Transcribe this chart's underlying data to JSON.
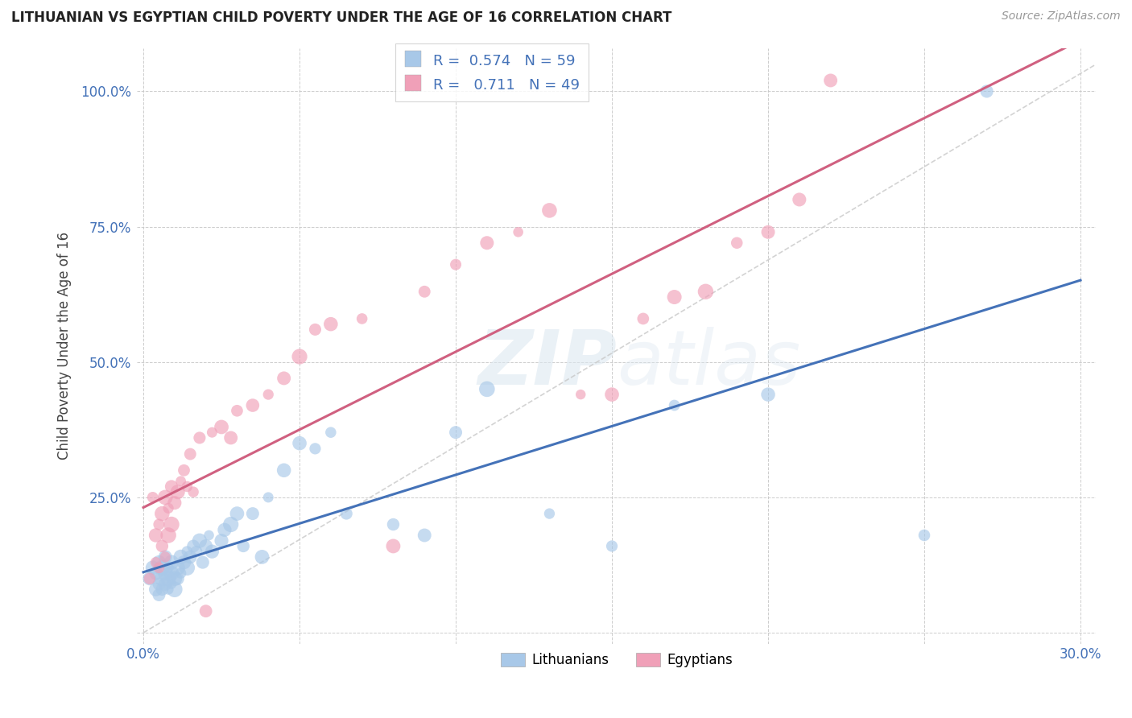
{
  "title": "LITHUANIAN VS EGYPTIAN CHILD POVERTY UNDER THE AGE OF 16 CORRELATION CHART",
  "source": "Source: ZipAtlas.com",
  "ylabel": "Child Poverty Under the Age of 16",
  "xlabel": "",
  "xlim": [
    -0.002,
    0.305
  ],
  "ylim": [
    -0.02,
    1.08
  ],
  "xticks": [
    0.0,
    0.05,
    0.1,
    0.15,
    0.2,
    0.25,
    0.3
  ],
  "xtick_labels": [
    "0.0%",
    "",
    "",
    "",
    "",
    "",
    "30.0%"
  ],
  "yticks": [
    0.0,
    0.25,
    0.5,
    0.75,
    1.0
  ],
  "ytick_labels": [
    "",
    "25.0%",
    "50.0%",
    "75.0%",
    "100.0%"
  ],
  "grid_color": "#c8c8c8",
  "background_color": "#ffffff",
  "watermark": "ZIPatlas",
  "legend_R1": "0.574",
  "legend_N1": "59",
  "legend_R2": "0.711",
  "legend_N2": "49",
  "blue_color": "#a8c8e8",
  "pink_color": "#f0a0b8",
  "blue_line_color": "#4472b8",
  "pink_line_color": "#d06080",
  "ref_line_color": "#c8c8c8",
  "label_color_blue": "#4472b8",
  "R_color": "#1a1a2e",
  "N_color": "#4472b8",
  "lith_x": [
    0.002,
    0.003,
    0.004,
    0.004,
    0.005,
    0.005,
    0.005,
    0.006,
    0.006,
    0.006,
    0.007,
    0.007,
    0.007,
    0.008,
    0.008,
    0.008,
    0.009,
    0.009,
    0.009,
    0.01,
    0.01,
    0.011,
    0.011,
    0.012,
    0.012,
    0.013,
    0.014,
    0.014,
    0.015,
    0.016,
    0.017,
    0.018,
    0.019,
    0.02,
    0.021,
    0.022,
    0.025,
    0.026,
    0.028,
    0.03,
    0.032,
    0.035,
    0.038,
    0.04,
    0.045,
    0.05,
    0.055,
    0.06,
    0.065,
    0.08,
    0.09,
    0.1,
    0.11,
    0.13,
    0.15,
    0.17,
    0.2,
    0.25,
    0.27
  ],
  "lith_y": [
    0.1,
    0.12,
    0.08,
    0.11,
    0.09,
    0.13,
    0.07,
    0.1,
    0.12,
    0.08,
    0.11,
    0.09,
    0.14,
    0.1,
    0.08,
    0.12,
    0.09,
    0.11,
    0.13,
    0.1,
    0.08,
    0.12,
    0.1,
    0.14,
    0.11,
    0.13,
    0.15,
    0.12,
    0.14,
    0.16,
    0.15,
    0.17,
    0.13,
    0.16,
    0.18,
    0.15,
    0.17,
    0.19,
    0.2,
    0.22,
    0.16,
    0.22,
    0.14,
    0.25,
    0.3,
    0.35,
    0.34,
    0.37,
    0.22,
    0.2,
    0.18,
    0.37,
    0.45,
    0.22,
    0.16,
    0.42,
    0.44,
    0.18,
    1.0
  ],
  "egypt_x": [
    0.002,
    0.003,
    0.004,
    0.004,
    0.005,
    0.005,
    0.006,
    0.006,
    0.007,
    0.007,
    0.008,
    0.008,
    0.009,
    0.009,
    0.01,
    0.011,
    0.012,
    0.013,
    0.014,
    0.015,
    0.016,
    0.018,
    0.02,
    0.022,
    0.025,
    0.028,
    0.03,
    0.035,
    0.04,
    0.045,
    0.05,
    0.055,
    0.06,
    0.07,
    0.08,
    0.09,
    0.1,
    0.11,
    0.12,
    0.13,
    0.14,
    0.15,
    0.16,
    0.17,
    0.18,
    0.19,
    0.2,
    0.21,
    0.22
  ],
  "egypt_y": [
    0.1,
    0.25,
    0.13,
    0.18,
    0.12,
    0.2,
    0.16,
    0.22,
    0.14,
    0.25,
    0.23,
    0.18,
    0.27,
    0.2,
    0.24,
    0.26,
    0.28,
    0.3,
    0.27,
    0.33,
    0.26,
    0.36,
    0.04,
    0.37,
    0.38,
    0.36,
    0.41,
    0.42,
    0.44,
    0.47,
    0.51,
    0.56,
    0.57,
    0.58,
    0.16,
    0.63,
    0.68,
    0.72,
    0.74,
    0.78,
    0.44,
    0.44,
    0.58,
    0.62,
    0.63,
    0.72,
    0.74,
    0.8,
    1.02
  ]
}
